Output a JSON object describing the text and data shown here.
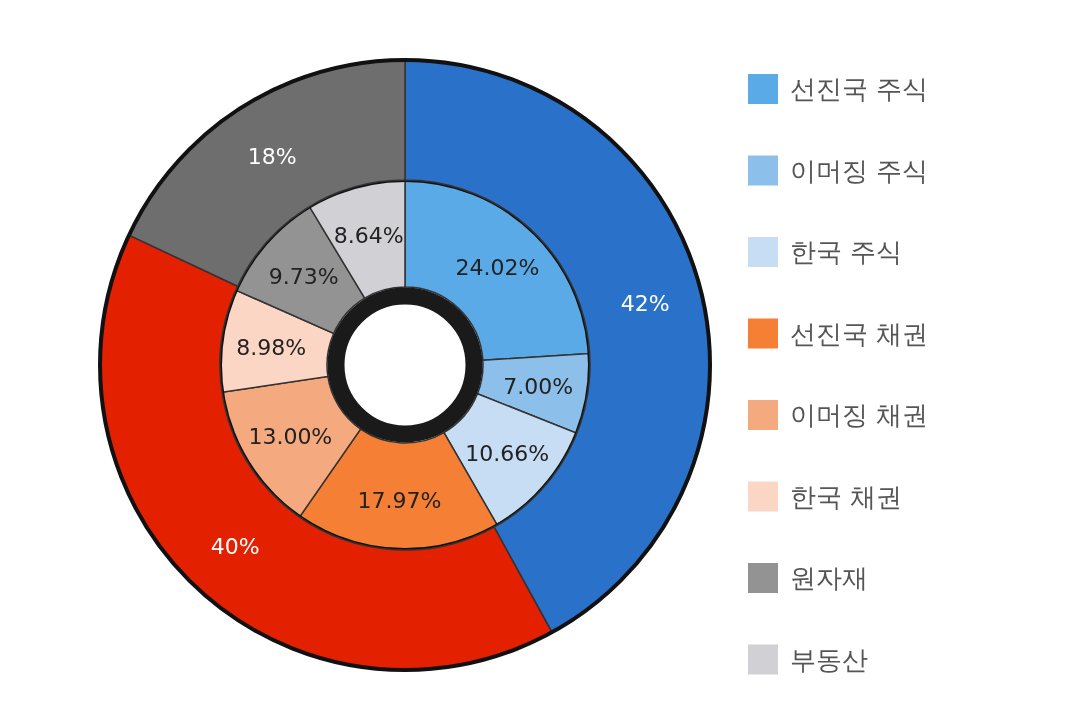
{
  "chart_data": [
    {
      "type": "donut",
      "categories": [
        "선진국 주식",
        "이머징 주식",
        "한국 주식",
        "선진국 채권",
        "이머징 채권",
        "한국 채권",
        "원자재",
        "부동산"
      ],
      "values": [
        24.02,
        7.0,
        10.66,
        17.97,
        13.0,
        8.98,
        9.73,
        8.64
      ],
      "value_labels": [
        "24.02%",
        "7.00%",
        "10.66%",
        "17.97%",
        "13.00%",
        "8.98%",
        "9.73%",
        "8.64%"
      ],
      "colors": [
        "#5aaae8",
        "#8cc0ea",
        "#c6ddf4",
        "#f57f35",
        "#f5a97f",
        "#fcd6c4",
        "#939393",
        "#d1d1d5"
      ],
      "legend": "right"
    },
    {
      "type": "donut",
      "categories": [
        null,
        null,
        null
      ],
      "values": [
        42,
        40,
        18
      ],
      "value_labels": [
        "42%",
        "40%",
        "18%"
      ],
      "colors": [
        "#2a72c9",
        "#e32000",
        "#6e6e6e"
      ],
      "legend": false
    }
  ]
}
